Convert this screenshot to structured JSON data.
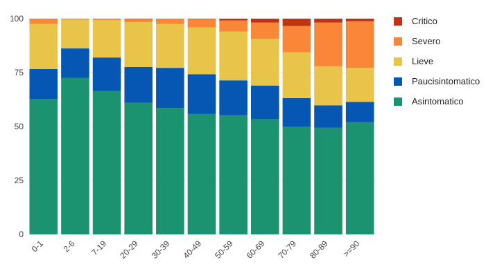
{
  "chart_data": {
    "type": "bar",
    "stacked": true,
    "title": "",
    "xlabel": "",
    "ylabel": "",
    "ylim": [
      0,
      100
    ],
    "yticks": [
      0,
      25,
      50,
      75,
      100
    ],
    "grid": true,
    "legend_position": "right",
    "categories": [
      "0-1",
      "2-6",
      "7-19",
      "20-29",
      "30-39",
      "40-49",
      "50-59",
      "60-69",
      "70-79",
      "80-89",
      ">=90"
    ],
    "series": [
      {
        "name": "Asintomatico",
        "color": "#1b9270",
        "values": [
          62.8,
          72.6,
          66.4,
          61.0,
          58.6,
          55.8,
          55.2,
          53.4,
          50.0,
          49.4,
          52.0
        ]
      },
      {
        "name": "Paucisintomatico",
        "color": "#0557b3",
        "values": [
          13.8,
          13.6,
          15.6,
          16.6,
          18.6,
          18.4,
          16.2,
          15.6,
          13.2,
          10.4,
          9.4
        ]
      },
      {
        "name": "Lieve",
        "color": "#e8c548",
        "values": [
          21.0,
          13.4,
          17.4,
          20.8,
          20.4,
          21.8,
          22.6,
          21.6,
          21.2,
          18.0,
          15.8
        ]
      },
      {
        "name": "Severo",
        "color": "#fa8637",
        "values": [
          2.3,
          0.3,
          0.5,
          1.4,
          2.3,
          3.8,
          5.2,
          7.6,
          12.2,
          20.4,
          21.6
        ]
      },
      {
        "name": "Critico",
        "color": "#bf3311",
        "values": [
          0.1,
          0.1,
          0.1,
          0.2,
          0.1,
          0.2,
          0.8,
          1.8,
          3.4,
          1.8,
          1.2
        ]
      }
    ]
  }
}
